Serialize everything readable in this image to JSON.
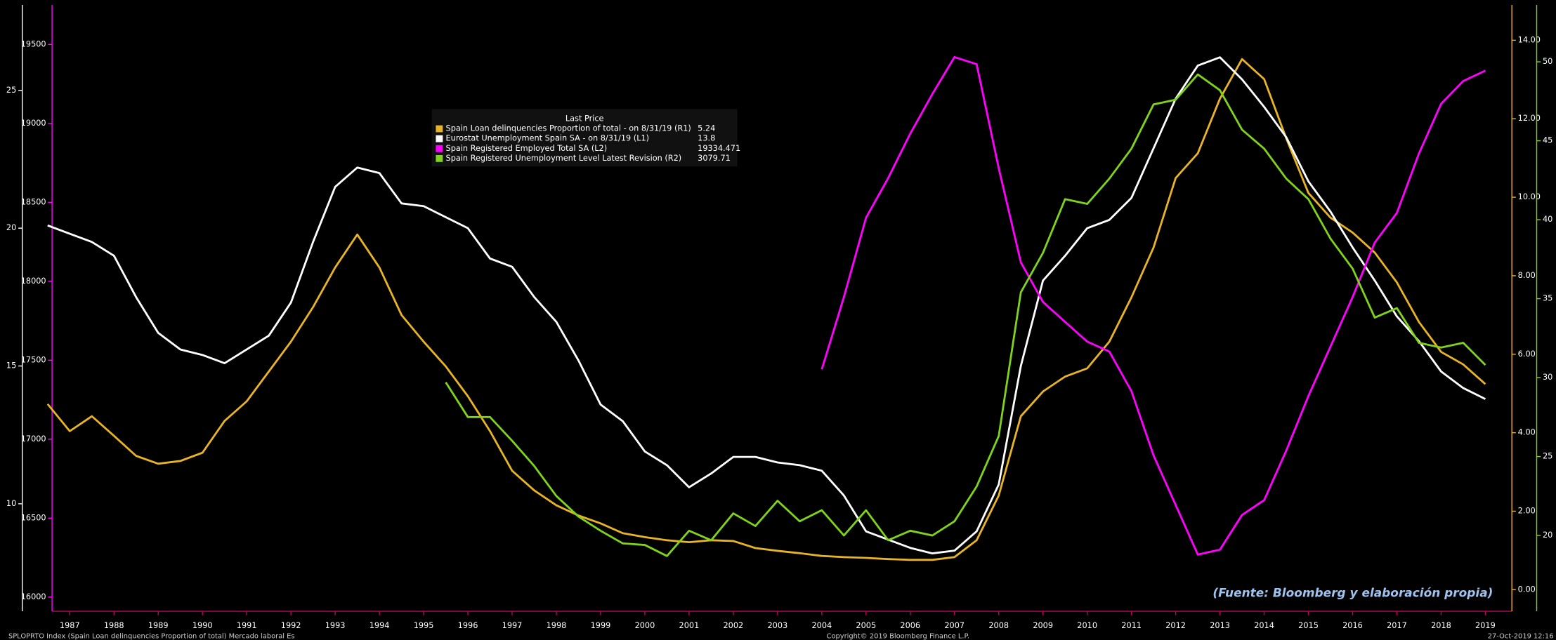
{
  "chart_data": {
    "type": "line",
    "annotation": "(Fuente: Bloomberg y elaboración propia)",
    "footer_left": "SPLOPRTO Index (Spain Loan delinquencies Proportion of total) Mercado laboral Es",
    "footer_center": "Copyright© 2019 Bloomberg Finance L.P.",
    "footer_right": "27-Oct-2019 12:16",
    "legend_title": "Last Price",
    "x": [
      1987,
      1987.5,
      1988,
      1988.5,
      1989,
      1989.5,
      1990,
      1990.5,
      1991,
      1991.5,
      1992,
      1992.5,
      1993,
      1993.5,
      1994,
      1994.5,
      1995,
      1995.5,
      1996,
      1996.5,
      1997,
      1997.5,
      1998,
      1998.5,
      1999,
      1999.5,
      2000,
      2000.5,
      2001,
      2001.5,
      2002,
      2002.5,
      2003,
      2003.5,
      2004,
      2004.5,
      2005,
      2005.5,
      2006,
      2006.5,
      2007,
      2007.5,
      2008,
      2008.5,
      2009,
      2009.5,
      2010,
      2010.5,
      2011,
      2011.5,
      2012,
      2012.5,
      2013,
      2013.5,
      2014,
      2014.5,
      2015,
      2015.5,
      2016,
      2016.5,
      2017,
      2017.5,
      2018,
      2018.5,
      2019,
      2019.5
    ],
    "xlim": [
      1987.1,
      2020.1
    ],
    "xticks": [
      {
        "value": 1987.5,
        "label": "1987"
      },
      {
        "value": 1988.5,
        "label": "1988"
      },
      {
        "value": 1989.5,
        "label": "1989"
      },
      {
        "value": 1990.5,
        "label": "1990"
      },
      {
        "value": 1991.5,
        "label": "1991"
      },
      {
        "value": 1992.5,
        "label": "1992"
      },
      {
        "value": 1993.5,
        "label": "1993"
      },
      {
        "value": 1994.5,
        "label": "1994"
      },
      {
        "value": 1995.5,
        "label": "1995"
      },
      {
        "value": 1996.5,
        "label": "1996"
      },
      {
        "value": 1997.5,
        "label": "1997"
      },
      {
        "value": 1998.5,
        "label": "1998"
      },
      {
        "value": 1999.5,
        "label": "1999"
      },
      {
        "value": 2000.5,
        "label": "2000"
      },
      {
        "value": 2001.5,
        "label": "2001"
      },
      {
        "value": 2002.5,
        "label": "2002"
      },
      {
        "value": 2003.5,
        "label": "2003"
      },
      {
        "value": 2004.5,
        "label": "2004"
      },
      {
        "value": 2005.5,
        "label": "2005"
      },
      {
        "value": 2006.5,
        "label": "2006"
      },
      {
        "value": 2007.5,
        "label": "2007"
      },
      {
        "value": 2008.5,
        "label": "2008"
      },
      {
        "value": 2009.5,
        "label": "2009"
      },
      {
        "value": 2010.5,
        "label": "2010"
      },
      {
        "value": 2011.5,
        "label": "2011"
      },
      {
        "value": 2012.5,
        "label": "2012"
      },
      {
        "value": 2013.5,
        "label": "2013"
      },
      {
        "value": 2014.5,
        "label": "2014"
      },
      {
        "value": 2015.5,
        "label": "2015"
      },
      {
        "value": 2016.5,
        "label": "2016"
      },
      {
        "value": 2017.5,
        "label": "2017"
      },
      {
        "value": 2018.5,
        "label": "2018"
      },
      {
        "value": 2019.5,
        "label": "2019"
      }
    ],
    "ylim": [
      6.1,
      28.1
    ],
    "yticks": [
      10,
      15,
      20,
      25
    ],
    "y2lim": [
      -0.55,
      14.9
    ],
    "y2ticks": [
      {
        "value": 0,
        "label": "0.00"
      },
      {
        "value": 2,
        "label": "2.00"
      },
      {
        "value": 4,
        "label": "4.00"
      },
      {
        "value": 6,
        "label": "6.00"
      },
      {
        "value": 8,
        "label": "8.00"
      },
      {
        "value": 10,
        "label": "10.00"
      },
      {
        "value": 12,
        "label": "12.00"
      },
      {
        "value": 14,
        "label": "14.00"
      }
    ],
    "y3lim": [
      15910,
      19750
    ],
    "y3ticks": [
      16000,
      16500,
      17000,
      17500,
      18000,
      18500,
      19000,
      19500
    ],
    "y4lim": [
      15.2,
      53.6
    ],
    "y4ticks": [
      20,
      25,
      30,
      35,
      40,
      45,
      50
    ],
    "series": [
      {
        "name": "Spain Loan delinquencies Proportion of total -  on 8/31/19  (R1)",
        "last_price": "5.24",
        "color": "#e8b425",
        "axis": "y2",
        "values": [
          4.73,
          4.04,
          4.42,
          3.92,
          3.41,
          3.21,
          3.28,
          3.49,
          4.3,
          4.8,
          5.56,
          6.32,
          7.2,
          8.21,
          9.05,
          8.21,
          7.0,
          6.32,
          5.69,
          4.93,
          4.04,
          3.03,
          2.53,
          2.15,
          1.89,
          1.69,
          1.44,
          1.34,
          1.26,
          1.21,
          1.26,
          1.24,
          1.06,
          0.99,
          0.93,
          0.86,
          0.83,
          0.81,
          0.78,
          0.76,
          0.76,
          0.83,
          1.26,
          2.4,
          4.42,
          5.05,
          5.43,
          5.64,
          6.32,
          7.45,
          8.72,
          10.49,
          11.12,
          12.51,
          13.52,
          13.01,
          11.5,
          10.11,
          9.48,
          9.1,
          8.59,
          7.83,
          6.82,
          6.06,
          5.74,
          5.24
        ]
      },
      {
        "name": "Eurostat Unemployment Spain SA -  on 8/31/19  (L1)",
        "last_price": "13.8",
        "color": "#ffffff",
        "axis": "y",
        "values": [
          20.1,
          19.8,
          19.5,
          19.0,
          17.5,
          16.2,
          15.6,
          15.4,
          15.1,
          15.6,
          16.1,
          17.3,
          19.5,
          21.5,
          22.2,
          22.0,
          20.9,
          20.8,
          20.4,
          20.0,
          18.9,
          18.6,
          17.5,
          16.6,
          15.2,
          13.6,
          13.0,
          11.9,
          11.4,
          10.6,
          11.1,
          11.7,
          11.7,
          11.5,
          11.4,
          11.2,
          10.3,
          9.0,
          8.7,
          8.4,
          8.2,
          8.3,
          9.0,
          10.7,
          15.0,
          18.1,
          19.0,
          20.0,
          20.3,
          21.1,
          22.9,
          24.7,
          25.9,
          26.2,
          25.4,
          24.4,
          23.3,
          21.7,
          20.6,
          19.3,
          18.1,
          16.8,
          15.9,
          14.8,
          14.2,
          13.8
        ]
      },
      {
        "name": "Spain Registered Employed Total SA  (L2)",
        "last_price": "19334.471",
        "color": "#ff00ff",
        "axis": "y3",
        "values": [
          null,
          null,
          null,
          null,
          null,
          null,
          null,
          null,
          null,
          null,
          null,
          null,
          null,
          null,
          null,
          null,
          null,
          null,
          null,
          null,
          null,
          null,
          null,
          null,
          null,
          null,
          null,
          null,
          null,
          null,
          null,
          null,
          null,
          null,
          null,
          17442,
          17900,
          18402,
          18653,
          18935,
          19186,
          19420,
          19375,
          18716,
          18120,
          17869,
          17743,
          17618,
          17555,
          17304,
          16897,
          16583,
          16269,
          16300,
          16520,
          16614,
          16928,
          17273,
          17587,
          17900,
          18245,
          18433,
          18810,
          19124,
          19268,
          19334
        ]
      },
      {
        "name": "Spain Registered Unemployment Level Latest Revision  (R2)",
        "last_price": "3079.71",
        "color": "#7fd31a",
        "axis": "y4",
        "values": [
          null,
          null,
          null,
          null,
          null,
          null,
          null,
          null,
          null,
          null,
          null,
          null,
          null,
          null,
          null,
          null,
          null,
          null,
          29.7,
          27.5,
          27.5,
          26.0,
          24.4,
          22.5,
          21.2,
          20.3,
          19.5,
          19.4,
          18.7,
          20.3,
          19.7,
          21.4,
          20.6,
          22.2,
          20.9,
          21.6,
          20.0,
          21.6,
          19.7,
          20.3,
          20.0,
          20.9,
          23.1,
          26.3,
          35.4,
          37.9,
          41.3,
          41.0,
          42.6,
          44.5,
          47.3,
          47.6,
          49.2,
          48.2,
          45.7,
          44.5,
          42.6,
          41.3,
          38.8,
          36.9,
          33.8,
          34.4,
          32.2,
          31.9,
          32.2,
          30.8
        ]
      }
    ]
  }
}
